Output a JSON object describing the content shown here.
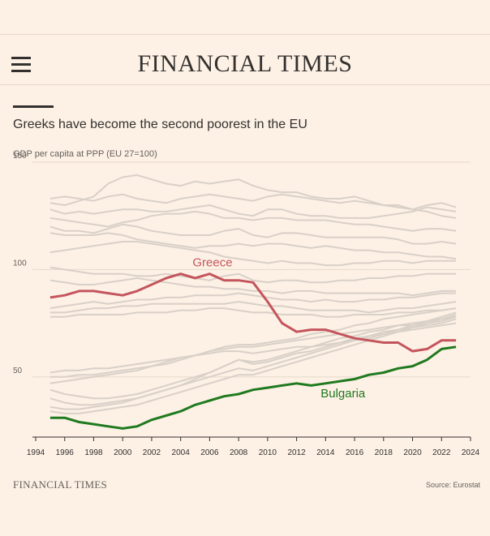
{
  "header": {
    "masthead": "FINANCIAL TIMES",
    "menu_icon": "hamburger-menu-icon"
  },
  "colors": {
    "background": "#fdf1e5",
    "grid": "#e6d8c8",
    "other_countries": "#d9d0c8",
    "greece": "#c4555d",
    "bulgaria": "#1f7a1f",
    "text": "#33302e"
  },
  "footer": {
    "logo": "FINANCIAL TIMES",
    "source": "Source: Eurostat"
  },
  "chart_data": {
    "type": "line",
    "title": "Greeks have become the second poorest in the EU",
    "subtitle": "GDP per capita at PPP (EU 27=100)",
    "xlabel": "",
    "ylabel": "",
    "xlim": [
      1994,
      2024
    ],
    "ylim": [
      22,
      150
    ],
    "x_ticks": [
      "1994",
      "1996",
      "1998",
      "2000",
      "2002",
      "2004",
      "2006",
      "2008",
      "2010",
      "2012",
      "2014",
      "2016",
      "2018",
      "2020",
      "2022",
      "2024"
    ],
    "y_ticks": [
      "50",
      "100",
      "150"
    ],
    "grid": true,
    "x": [
      1995,
      1996,
      1997,
      1998,
      1999,
      2000,
      2001,
      2002,
      2003,
      2004,
      2005,
      2006,
      2007,
      2008,
      2009,
      2010,
      2011,
      2012,
      2013,
      2014,
      2015,
      2016,
      2017,
      2018,
      2019,
      2020,
      2021,
      2022,
      2023
    ],
    "series": [
      {
        "name": "Greece",
        "highlight": true,
        "values": [
          87,
          88,
          90,
          90,
          89,
          88,
          90,
          93,
          96,
          98,
          96,
          98,
          95,
          95,
          94,
          85,
          75,
          71,
          72,
          72,
          70,
          68,
          67,
          66,
          66,
          62,
          63,
          67,
          67
        ]
      },
      {
        "name": "Bulgaria",
        "highlight": true,
        "values": [
          31,
          31,
          29,
          28,
          27,
          26,
          27,
          30,
          32,
          34,
          37,
          39,
          41,
          42,
          44,
          45,
          46,
          47,
          46,
          47,
          48,
          49,
          51,
          52,
          54,
          55,
          58,
          63,
          64
        ]
      },
      {
        "name": "",
        "values": [
          133,
          134,
          133,
          132,
          134,
          135,
          133,
          132,
          131,
          133,
          134,
          135,
          134,
          133,
          132,
          134,
          135,
          134,
          133,
          132,
          131,
          132,
          131,
          130,
          129,
          128,
          130,
          131,
          129
        ]
      },
      {
        "name": "",
        "values": [
          131,
          130,
          132,
          134,
          140,
          143,
          144,
          142,
          140,
          139,
          141,
          140,
          141,
          142,
          139,
          137,
          136,
          136,
          134,
          133,
          133,
          134,
          132,
          130,
          130,
          128,
          127,
          125,
          124
        ]
      },
      {
        "name": "",
        "values": [
          128,
          126,
          127,
          126,
          127,
          128,
          128,
          127,
          127,
          128,
          129,
          130,
          128,
          126,
          125,
          128,
          128,
          126,
          125,
          125,
          124,
          124,
          124,
          125,
          126,
          127,
          129,
          128,
          127
        ]
      },
      {
        "name": "",
        "values": [
          124,
          123,
          122,
          121,
          120,
          122,
          123,
          125,
          126,
          126,
          127,
          126,
          124,
          124,
          123,
          124,
          124,
          123,
          123,
          123,
          122,
          121,
          121,
          120,
          119,
          118,
          119,
          119,
          118
        ]
      },
      {
        "name": "",
        "values": [
          120,
          118,
          118,
          117,
          119,
          121,
          120,
          118,
          117,
          116,
          116,
          116,
          118,
          119,
          116,
          115,
          117,
          117,
          116,
          115,
          115,
          115,
          115,
          115,
          114,
          112,
          112,
          113,
          112
        ]
      },
      {
        "name": "",
        "values": [
          117,
          116,
          116,
          116,
          117,
          116,
          114,
          113,
          112,
          111,
          110,
          111,
          111,
          112,
          111,
          112,
          112,
          111,
          110,
          111,
          110,
          109,
          109,
          108,
          108,
          107,
          106,
          106,
          105
        ]
      },
      {
        "name": "",
        "values": [
          108,
          109,
          110,
          111,
          112,
          113,
          113,
          112,
          111,
          110,
          109,
          108,
          106,
          105,
          104,
          103,
          104,
          103,
          103,
          102,
          102,
          103,
          103,
          104,
          104,
          103,
          104,
          104,
          104
        ]
      },
      {
        "name": "",
        "values": [
          101,
          100,
          99,
          98,
          98,
          98,
          97,
          97,
          98,
          97,
          96,
          95,
          97,
          98,
          95,
          94,
          95,
          95,
          94,
          94,
          95,
          95,
          96,
          96,
          97,
          97,
          98,
          98,
          98
        ]
      },
      {
        "name": "",
        "values": [
          95,
          94,
          93,
          93,
          94,
          95,
          96,
          95,
          94,
          93,
          92,
          92,
          91,
          91,
          90,
          90,
          89,
          90,
          90,
          89,
          89,
          89,
          89,
          89,
          89,
          88,
          89,
          90,
          90
        ]
      },
      {
        "name": "",
        "values": [
          82,
          83,
          84,
          85,
          84,
          85,
          86,
          86,
          87,
          87,
          88,
          88,
          88,
          89,
          88,
          87,
          86,
          86,
          85,
          86,
          85,
          85,
          86,
          86,
          87,
          87,
          88,
          89,
          89
        ]
      },
      {
        "name": "",
        "values": [
          80,
          80,
          81,
          82,
          82,
          83,
          83,
          84,
          84,
          84,
          84,
          84,
          84,
          85,
          84,
          83,
          83,
          82,
          81,
          81,
          81,
          81,
          80,
          81,
          82,
          82,
          83,
          84,
          85
        ]
      },
      {
        "name": "",
        "values": [
          78,
          78,
          79,
          79,
          79,
          79,
          80,
          80,
          80,
          81,
          81,
          82,
          82,
          81,
          80,
          80,
          79,
          79,
          79,
          78,
          78,
          79,
          79,
          79,
          80,
          80,
          81,
          81,
          82
        ]
      },
      {
        "name": "",
        "values": [
          50,
          50,
          51,
          51,
          52,
          53,
          54,
          55,
          57,
          59,
          60,
          62,
          63,
          64,
          64,
          65,
          66,
          67,
          68,
          69,
          70,
          71,
          72,
          73,
          74,
          74,
          75,
          76,
          78
        ]
      },
      {
        "name": "",
        "values": [
          47,
          48,
          49,
          50,
          51,
          52,
          53,
          55,
          56,
          58,
          60,
          62,
          64,
          65,
          65,
          66,
          67,
          68,
          70,
          71,
          72,
          74,
          75,
          77,
          78,
          79,
          80,
          81,
          82
        ]
      },
      {
        "name": "",
        "values": [
          44,
          42,
          41,
          40,
          40,
          41,
          42,
          44,
          46,
          48,
          50,
          52,
          55,
          58,
          56,
          57,
          59,
          61,
          62,
          64,
          66,
          68,
          69,
          70,
          71,
          72,
          73,
          74,
          75
        ]
      },
      {
        "name": "",
        "values": [
          40,
          38,
          37,
          37,
          38,
          39,
          40,
          42,
          44,
          46,
          49,
          52,
          55,
          58,
          57,
          58,
          60,
          62,
          64,
          66,
          68,
          69,
          71,
          72,
          74,
          75,
          76,
          77,
          78
        ]
      },
      {
        "name": "",
        "values": [
          36,
          35,
          35,
          36,
          37,
          38,
          40,
          42,
          44,
          46,
          48,
          50,
          52,
          54,
          53,
          55,
          57,
          59,
          61,
          63,
          65,
          67,
          69,
          71,
          72,
          74,
          76,
          78,
          80
        ]
      },
      {
        "name": "",
        "values": [
          34,
          33,
          33,
          34,
          35,
          36,
          37,
          39,
          41,
          43,
          45,
          47,
          49,
          51,
          51,
          53,
          55,
          57,
          59,
          61,
          63,
          65,
          67,
          69,
          71,
          73,
          75,
          77,
          79
        ]
      },
      {
        "name": "",
        "values": [
          52,
          53,
          53,
          54,
          54,
          55,
          56,
          57,
          58,
          59,
          60,
          61,
          62,
          62,
          61,
          62,
          63,
          64,
          64,
          65,
          66,
          67,
          68,
          70,
          72,
          73,
          74,
          75,
          77
        ]
      }
    ]
  }
}
